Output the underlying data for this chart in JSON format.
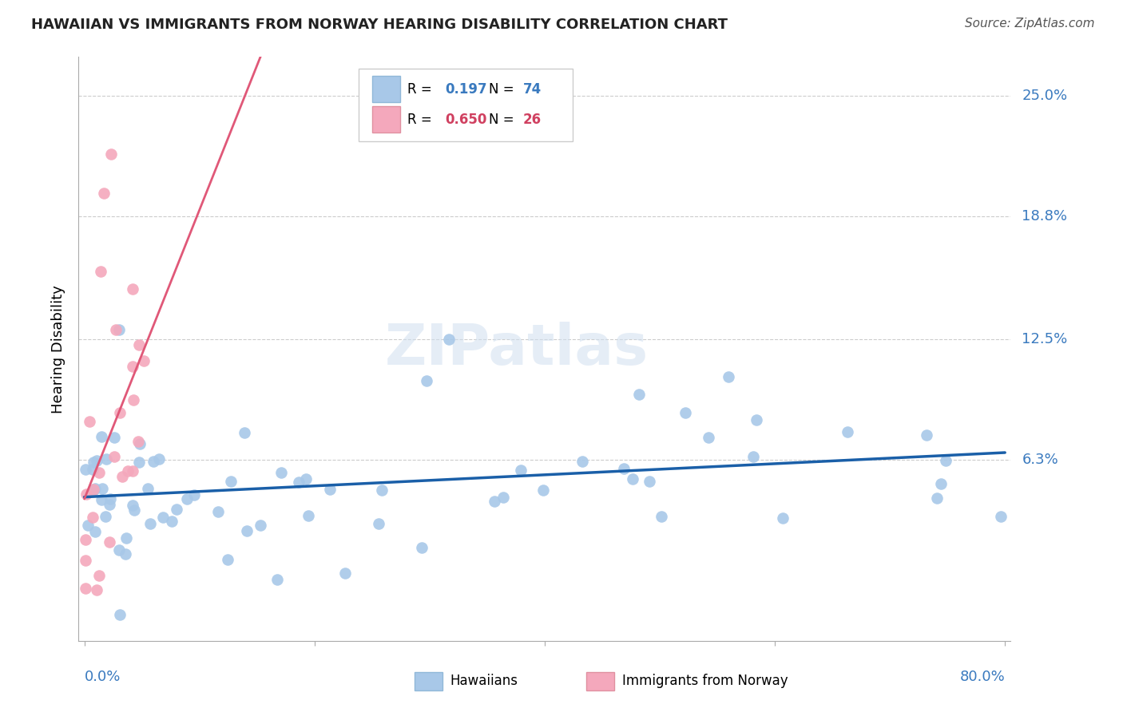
{
  "title": "HAWAIIAN VS IMMIGRANTS FROM NORWAY HEARING DISABILITY CORRELATION CHART",
  "source": "Source: ZipAtlas.com",
  "ylabel": "Hearing Disability",
  "watermark": "ZIPatlas",
  "ytick_labels": [
    "25.0%",
    "18.8%",
    "12.5%",
    "6.3%"
  ],
  "ytick_values": [
    0.25,
    0.188,
    0.125,
    0.063
  ],
  "xlim": [
    0.0,
    0.8
  ],
  "ylim": [
    -0.03,
    0.27
  ],
  "legend_r_hawaiian": "0.197",
  "legend_n_hawaiian": "74",
  "legend_r_norway": "0.650",
  "legend_n_norway": "26",
  "hawaiian_color": "#a8c8e8",
  "norway_color": "#f4a8bc",
  "line_hawaiian_color": "#1a5fa8",
  "line_norway_color": "#e05878",
  "blue_text_color": "#3a7abf",
  "red_text_color": "#d04060",
  "hawaiian_seed": 42,
  "norway_seed": 7
}
